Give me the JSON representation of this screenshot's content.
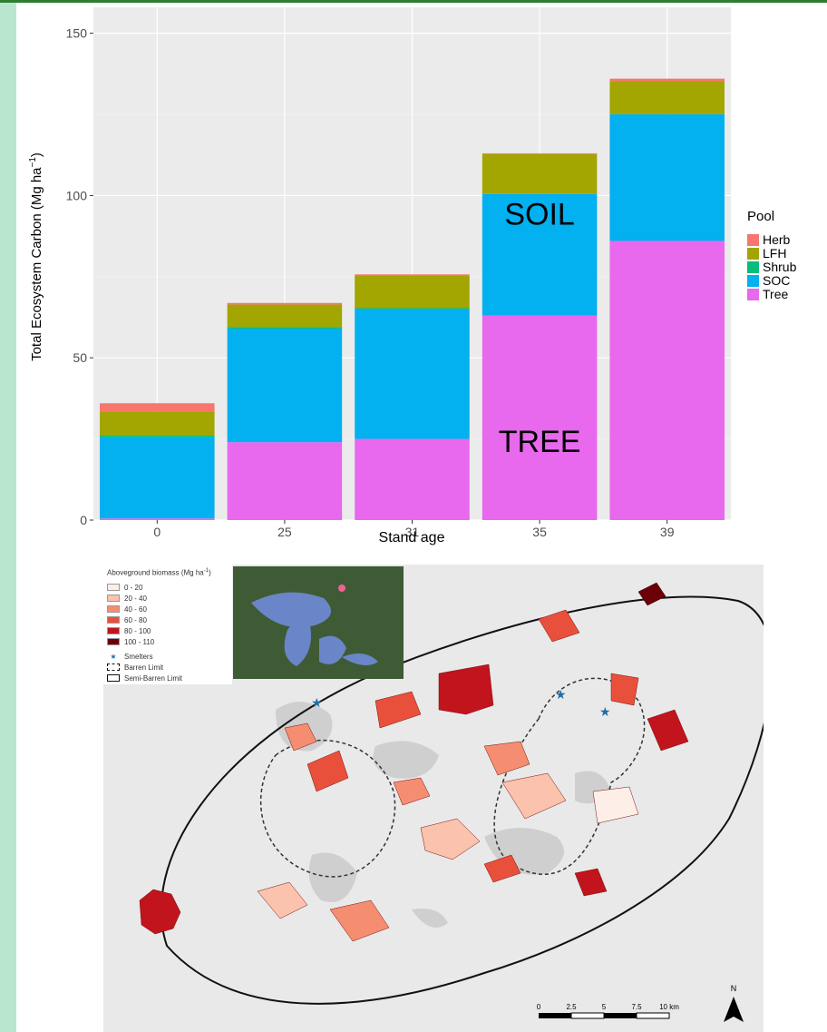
{
  "chart_data": {
    "type": "bar",
    "stacked": true,
    "xlabel": "Stand age",
    "ylabel": "Total Ecosystem Carbon (Mg ha",
    "ylabel_sup": "−1",
    "ylabel_close": ")",
    "categories": [
      "0",
      "25",
      "31",
      "35",
      "39"
    ],
    "ylim": [
      0,
      158
    ],
    "yticks": [
      0,
      50,
      100,
      150
    ],
    "grid": true,
    "legend_title": "Pool",
    "legend_position": "right",
    "series": [
      {
        "name": "Tree",
        "color": "#e868ee",
        "values": [
          0.5,
          24,
          25,
          63,
          86
        ]
      },
      {
        "name": "SOC",
        "color": "#03b0f0",
        "values": [
          25,
          35,
          40,
          37.5,
          39
        ]
      },
      {
        "name": "Shrub",
        "color": "#03be7c",
        "values": [
          0.5,
          0.5,
          0.3,
          0.1,
          0.1
        ]
      },
      {
        "name": "LFH",
        "color": "#a3a500",
        "values": [
          7.5,
          6.9,
          10.1,
          12.2,
          10.1
        ]
      },
      {
        "name": "Herb",
        "color": "#f8766d",
        "values": [
          2.5,
          0.5,
          0.3,
          0.2,
          0.8
        ]
      }
    ],
    "legend_order": [
      "Herb",
      "LFH",
      "Shrub",
      "SOC",
      "Tree"
    ],
    "annotations": [
      {
        "text": "SOIL",
        "category": "35",
        "y": 91
      },
      {
        "text": "TREE",
        "category": "35",
        "y": 21
      }
    ]
  },
  "map": {
    "legend_title": "Aboveground biomass (Mg ha",
    "legend_title_sup": "-1",
    "legend_title_close": ")",
    "classes": [
      {
        "label": "0 - 20",
        "color": "#fdeee8"
      },
      {
        "label": "20 - 40",
        "color": "#fbc2ad"
      },
      {
        "label": "40 - 60",
        "color": "#f58e70"
      },
      {
        "label": "60 - 80",
        "color": "#e9503c"
      },
      {
        "label": "80 - 100",
        "color": "#c1141c"
      },
      {
        "label": "100 - 110",
        "color": "#6b0009"
      }
    ],
    "smelters_label": "Smelters",
    "barren_label": "Barren Limit",
    "semibarren_label": "Semi-Barren Limit",
    "scale_labels": [
      "0",
      "2.5",
      "5",
      "7.5",
      "10 km"
    ],
    "north_label": "N",
    "smelter_color": "#1f6fa8"
  }
}
